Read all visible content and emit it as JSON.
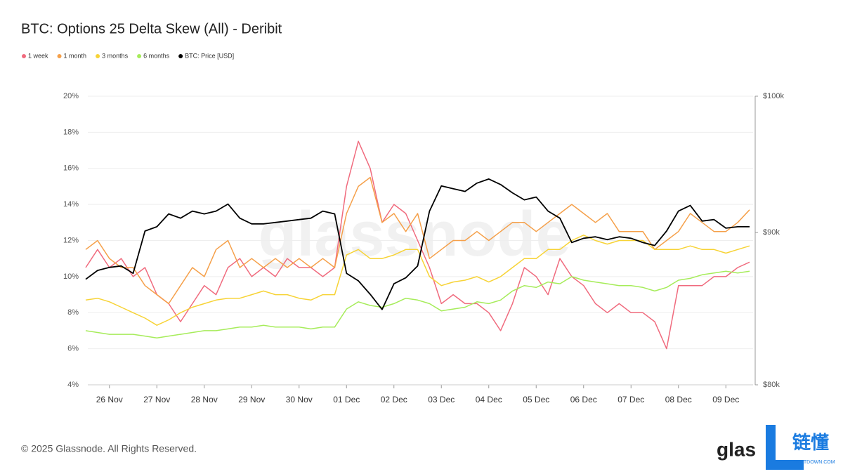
{
  "chart_data": {
    "type": "line",
    "title": "BTC: Options 25 Delta Skew (All) - Deribit",
    "watermark": "glassnode",
    "categories": [
      null,
      null,
      "26 Nov",
      null,
      null,
      null,
      "27 Nov",
      null,
      null,
      null,
      "28 Nov",
      null,
      null,
      null,
      "29 Nov",
      null,
      null,
      null,
      "30 Nov",
      null,
      null,
      null,
      "01 Dec",
      null,
      null,
      null,
      "02 Dec",
      null,
      null,
      null,
      "03 Dec",
      null,
      null,
      null,
      "04 Dec",
      null,
      null,
      null,
      "05 Dec",
      null,
      null,
      null,
      "06 Dec",
      null,
      null,
      null,
      "07 Dec",
      null,
      null,
      null,
      "08 Dec",
      null,
      null,
      null,
      "09 Dec",
      null,
      null
    ],
    "ylim": [
      4,
      20
    ],
    "yticks": [
      {
        "value": 4,
        "label": "4%"
      },
      {
        "value": 6,
        "label": "6%"
      },
      {
        "value": 8,
        "label": "8%"
      },
      {
        "value": 10,
        "label": "10%"
      },
      {
        "value": 12,
        "label": "12%"
      },
      {
        "value": 14,
        "label": "14%"
      },
      {
        "value": 16,
        "label": "16%"
      },
      {
        "value": 18,
        "label": "18%"
      },
      {
        "value": 20,
        "label": "20%"
      }
    ],
    "y2lim": [
      80000,
      100000
    ],
    "y2scale": "log",
    "y2ticks": [
      {
        "value": 80000,
        "label": "$80k"
      },
      {
        "value": 90000,
        "label": "$90k"
      },
      {
        "value": 100000,
        "label": "$100k"
      }
    ],
    "grid": true,
    "legend": "top-left",
    "series": [
      {
        "name": "1 week",
        "color": "#f06b7e",
        "values": [
          10.5,
          11.5,
          10.5,
          11,
          10,
          10.5,
          9,
          8.5,
          7.5,
          8.5,
          9.5,
          9,
          10.5,
          11,
          10,
          10.5,
          10,
          11,
          10.5,
          10.5,
          10,
          10.5,
          15,
          17.5,
          16,
          13,
          14,
          13.5,
          12,
          10.5,
          8.5,
          9,
          8.5,
          8.5,
          8,
          7,
          8.5,
          10.5,
          10,
          9,
          11,
          10,
          9.5,
          8.5,
          8,
          8.5,
          8,
          8,
          7.5,
          6,
          9.5,
          9.5,
          9.5,
          10,
          10,
          10.5,
          10.8
        ]
      },
      {
        "name": "1 month",
        "color": "#f5a04a",
        "values": [
          11.5,
          12,
          11,
          10.5,
          10.5,
          9.5,
          9,
          8.5,
          9.5,
          10.5,
          10,
          11.5,
          12,
          10.5,
          11,
          10.5,
          11,
          10.5,
          11,
          10.5,
          11,
          10.5,
          13.5,
          15,
          15.5,
          13,
          13.5,
          12.5,
          13.5,
          11,
          11.5,
          12,
          12,
          12.5,
          12,
          12.5,
          13,
          13,
          12.5,
          13,
          13.5,
          14,
          13.5,
          13,
          13.5,
          12.5,
          12.5,
          12.5,
          11.5,
          12,
          12.5,
          13.5,
          13,
          12.5,
          12.5,
          13,
          13.7
        ]
      },
      {
        "name": "3 months",
        "color": "#f7d336",
        "values": [
          8.7,
          8.8,
          8.6,
          8.3,
          8,
          7.7,
          7.3,
          7.6,
          8,
          8.3,
          8.5,
          8.7,
          8.8,
          8.8,
          9,
          9.2,
          9,
          9,
          8.8,
          8.7,
          9,
          9,
          11.2,
          11.5,
          11,
          11,
          11.2,
          11.5,
          11.5,
          10,
          9.5,
          9.7,
          9.8,
          10,
          9.7,
          10,
          10.5,
          11,
          11,
          11.5,
          11.5,
          12,
          12.3,
          12,
          11.8,
          12,
          12,
          12,
          11.5,
          11.5,
          11.5,
          11.7,
          11.5,
          11.5,
          11.3,
          11.5,
          11.7
        ]
      },
      {
        "name": "6 months",
        "color": "#a6ec5a",
        "values": [
          7,
          6.9,
          6.8,
          6.8,
          6.8,
          6.7,
          6.6,
          6.7,
          6.8,
          6.9,
          7,
          7,
          7.1,
          7.2,
          7.2,
          7.3,
          7.2,
          7.2,
          7.2,
          7.1,
          7.2,
          7.2,
          8.2,
          8.6,
          8.4,
          8.3,
          8.5,
          8.8,
          8.7,
          8.5,
          8.1,
          8.2,
          8.3,
          8.6,
          8.5,
          8.7,
          9.2,
          9.5,
          9.4,
          9.7,
          9.6,
          10,
          9.8,
          9.7,
          9.6,
          9.5,
          9.5,
          9.4,
          9.2,
          9.4,
          9.8,
          9.9,
          10.1,
          10.2,
          10.3,
          10.2,
          10.3
        ]
      },
      {
        "name": "BTC: Price [USD]",
        "color": "#000000",
        "axis": "y2",
        "values": [
          86800,
          87400,
          87600,
          87700,
          87200,
          90100,
          90400,
          91300,
          91000,
          91500,
          91300,
          91500,
          92000,
          91000,
          90600,
          90600,
          90700,
          90800,
          90900,
          91000,
          91500,
          91300,
          87200,
          86700,
          85800,
          84800,
          86500,
          86900,
          87700,
          91500,
          93300,
          93100,
          92900,
          93500,
          93800,
          93400,
          92800,
          92300,
          92500,
          91500,
          91000,
          89300,
          89600,
          89700,
          89500,
          89700,
          89600,
          89300,
          89100,
          90100,
          91500,
          91900,
          90800,
          90900,
          90300,
          90400,
          90400
        ]
      }
    ]
  },
  "footer": "© 2025 Glassnode. All Rights Reserved.",
  "logo": {
    "brand": "glas",
    "cn": "链懂",
    "site": "NEATDOWN.COM"
  }
}
